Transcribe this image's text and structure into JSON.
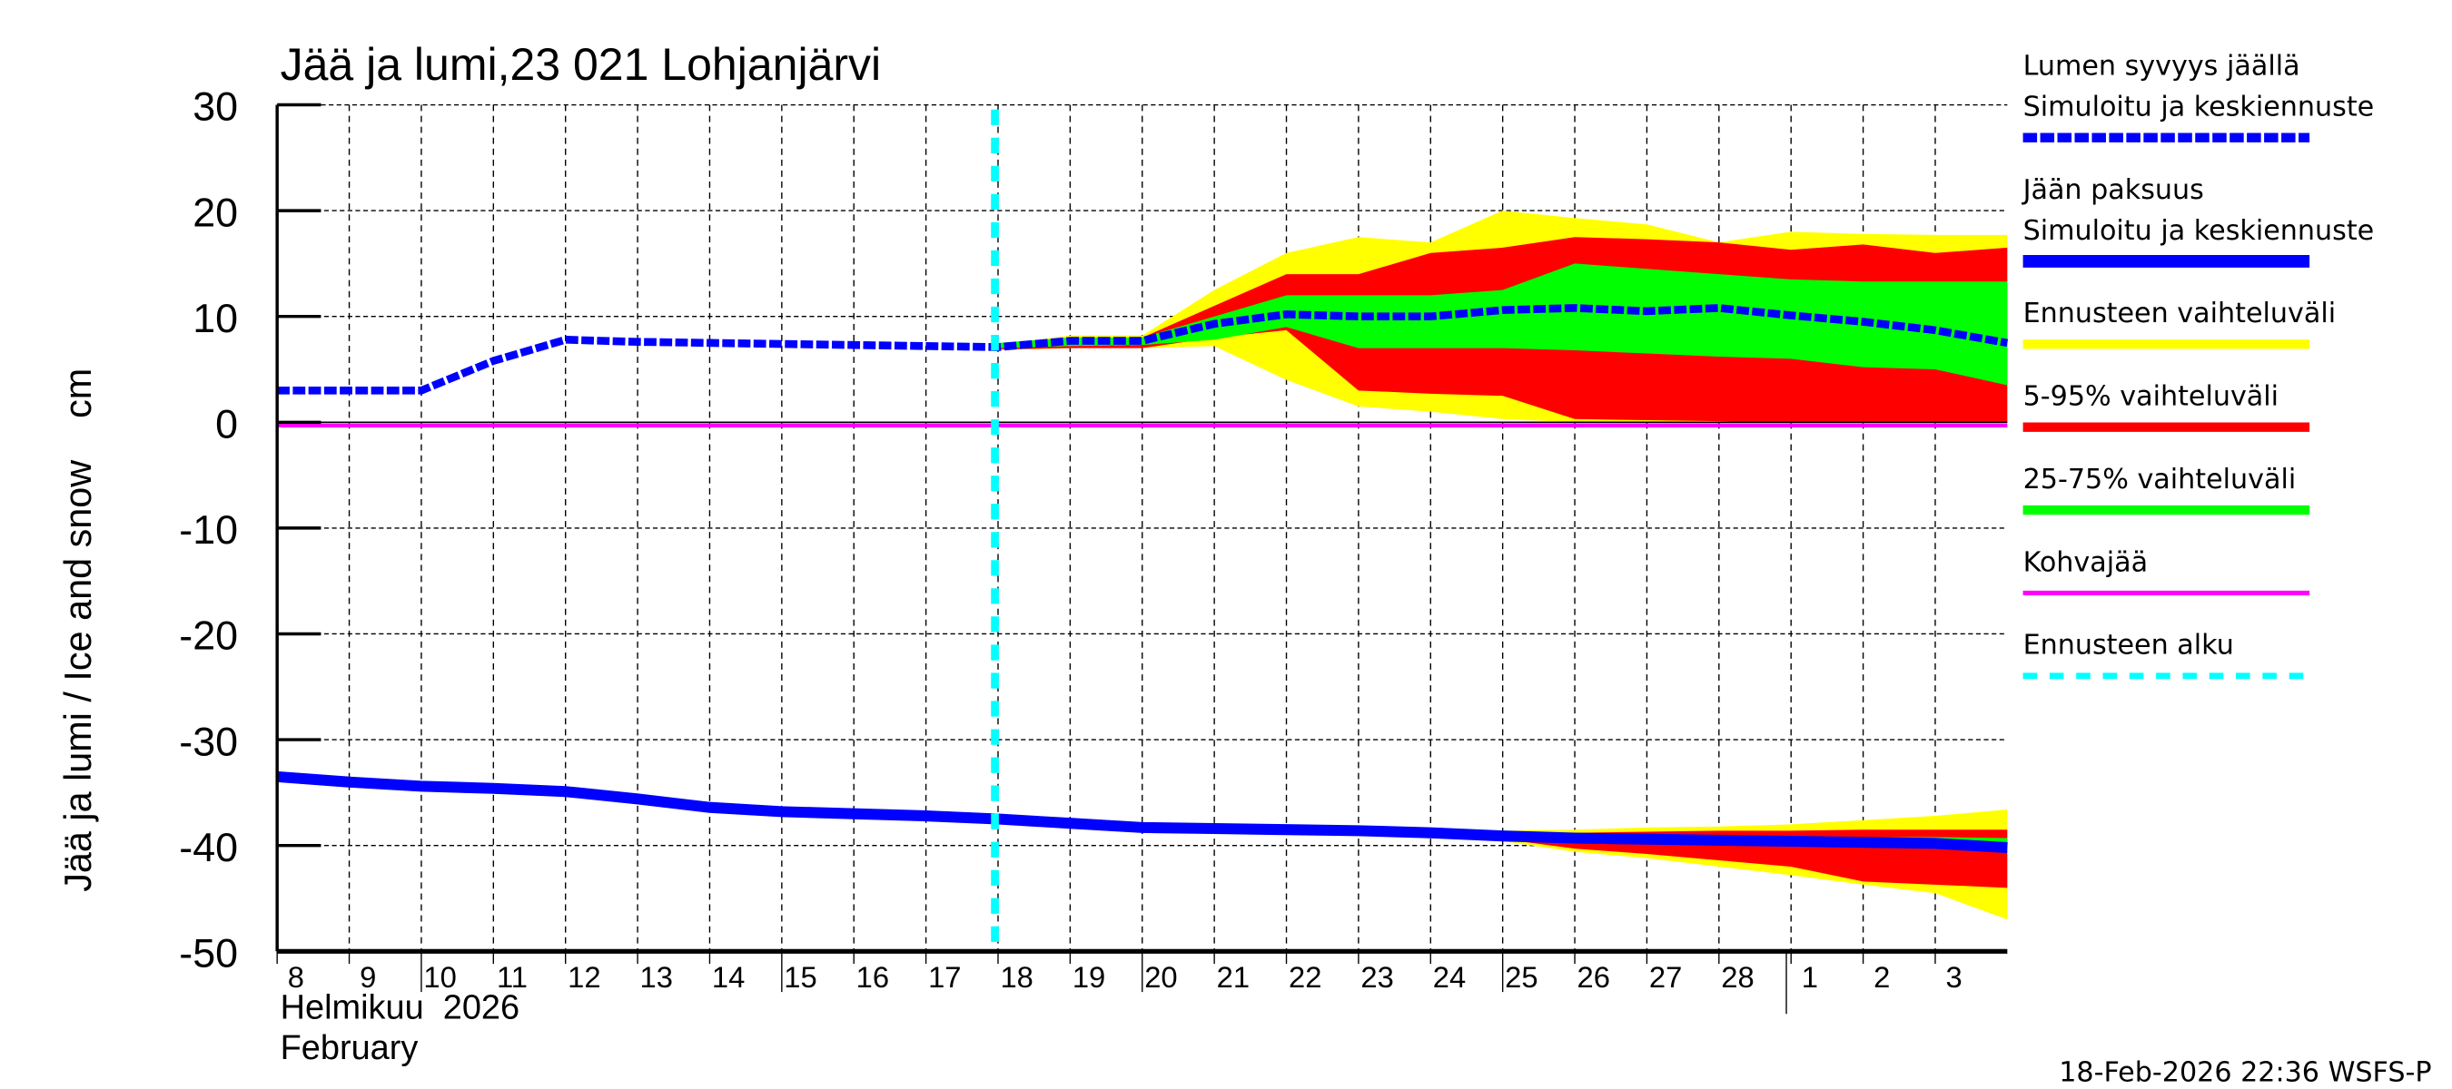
{
  "chart_data": {
    "type": "area",
    "title": "Jää ja lumi,23 021 Lohjanjärvi",
    "ylabel": "Jää ja lumi / Ice and snow    cm",
    "ylim": [
      -50,
      30
    ],
    "yticks": [
      30,
      20,
      10,
      0,
      -10,
      -20,
      -30,
      -40,
      -50
    ],
    "xlim": [
      "2026-02-08",
      "2026-03-04"
    ],
    "xtick_labels": [
      "8",
      "9",
      "10",
      "11",
      "12",
      "13",
      "14",
      "15",
      "16",
      "17",
      "18",
      "19",
      "20",
      "21",
      "22",
      "23",
      "24",
      "25",
      "26",
      "27",
      "28",
      "1",
      "2",
      "3"
    ],
    "month_label_fi": "Helmikuu  2026",
    "month_label_en": "February",
    "grid": true,
    "legend_placement": "right",
    "forecast_start": "2026-02-18",
    "kohvajaa_value": -0.3,
    "dates": [
      "2026-02-08",
      "2026-02-09",
      "2026-02-10",
      "2026-02-11",
      "2026-02-12",
      "2026-02-13",
      "2026-02-14",
      "2026-02-15",
      "2026-02-16",
      "2026-02-17",
      "2026-02-18",
      "2026-02-19",
      "2026-02-20",
      "2026-02-21",
      "2026-02-22",
      "2026-02-23",
      "2026-02-24",
      "2026-02-25",
      "2026-02-26",
      "2026-02-27",
      "2026-02-28",
      "2026-03-01",
      "2026-03-02",
      "2026-03-03",
      "2026-03-04"
    ],
    "snow_depth": [
      3,
      3,
      3,
      5.8,
      7.8,
      7.6,
      7.5,
      7.4,
      7.3,
      7.2,
      7.1,
      7.7,
      7.7,
      9.3,
      10.2,
      10,
      10,
      10.6,
      10.8,
      10.5,
      10.8,
      10.1,
      9.5,
      8.7,
      7.5
    ],
    "ice_thickness": [
      -33.5,
      -34,
      -34.4,
      -34.6,
      -34.9,
      -35.6,
      -36.4,
      -36.8,
      -37,
      -37.2,
      -37.5,
      -37.9,
      -38.3,
      -38.4,
      -38.5,
      -38.6,
      -38.8,
      -39.1,
      -39.3,
      -39.4,
      -39.5,
      -39.6,
      -39.7,
      -39.8,
      -40.2
    ],
    "band_dates": [
      "2026-02-18",
      "2026-02-19",
      "2026-02-20",
      "2026-02-21",
      "2026-02-22",
      "2026-02-23",
      "2026-02-24",
      "2026-02-25",
      "2026-02-26",
      "2026-02-27",
      "2026-02-28",
      "2026-03-01",
      "2026-03-02",
      "2026-03-03",
      "2026-03-04"
    ],
    "snow_bands": {
      "range": {
        "hi": [
          7.3,
          8.2,
          8.2,
          12.5,
          16,
          17.5,
          17,
          20,
          19.3,
          18.7,
          17,
          18,
          17.8,
          17.7,
          17.7
        ],
        "lo": [
          6.8,
          7,
          7,
          7.2,
          4,
          1.5,
          1,
          0.3,
          0,
          0,
          0,
          0,
          0,
          0,
          0
        ]
      },
      "p5_95": {
        "hi": [
          7.3,
          8,
          8,
          11,
          14,
          14,
          16,
          16.5,
          17.5,
          17.3,
          17,
          16.3,
          16.8,
          16,
          16.5
        ],
        "lo": [
          6.9,
          7,
          7,
          8,
          8.7,
          3,
          2.7,
          2.5,
          0.3,
          0.2,
          0.1,
          0,
          0,
          0,
          0
        ]
      },
      "p25_75": {
        "hi": [
          7.5,
          8,
          8,
          10,
          12,
          12,
          12,
          12.5,
          15,
          14.5,
          14,
          13.5,
          13.3,
          13.3,
          13.3
        ],
        "lo": [
          7,
          7.2,
          7.3,
          7.8,
          9,
          7,
          7,
          7,
          6.8,
          6.5,
          6.2,
          6,
          5.2,
          5,
          3.5
        ]
      }
    },
    "ice_bands": {
      "range": {
        "hi": [
          -37.5,
          -37.9,
          -38.3,
          -38.4,
          -38.5,
          -38.5,
          -38.4,
          -38.6,
          -38.5,
          -38.3,
          -38.2,
          -38,
          -37.6,
          -37.2,
          -36.6
        ],
        "lo": [
          -37.5,
          -37.9,
          -38.3,
          -38.4,
          -38.5,
          -38.7,
          -39,
          -39.6,
          -40.6,
          -41.2,
          -42,
          -42.8,
          -43.7,
          -44.5,
          -47
        ]
      },
      "p5_95": {
        "hi": [
          -37.5,
          -37.9,
          -38.3,
          -38.4,
          -38.5,
          -38.6,
          -38.8,
          -39,
          -38.8,
          -38.7,
          -38.6,
          -38.6,
          -38.5,
          -38.5,
          -38.5
        ],
        "lo": [
          -37.5,
          -37.9,
          -38.3,
          -38.4,
          -38.5,
          -38.7,
          -38.9,
          -39.4,
          -40.3,
          -40.8,
          -41.4,
          -42,
          -43.4,
          -43.7,
          -44
        ]
      },
      "p25_75": {
        "hi": [
          -37.5,
          -37.9,
          -38.3,
          -38.4,
          -38.5,
          -38.6,
          -38.8,
          -39.1,
          -39.1,
          -39.1,
          -39.1,
          -39.2,
          -39.2,
          -39.2,
          -39.3
        ],
        "lo": [
          -37.5,
          -37.9,
          -38.3,
          -38.4,
          -38.5,
          -38.6,
          -38.8,
          -39.2,
          -39.5,
          -39.7,
          -39.8,
          -40,
          -40.2,
          -40.3,
          -40.6
        ]
      }
    },
    "legend": [
      {
        "label1": "Lumen syvyys jäällä",
        "label2": "Simuloitu ja keskiennuste",
        "color": "#0000ff",
        "style": "dashed"
      },
      {
        "label1": "Jään paksuus",
        "label2": "Simuloitu ja keskiennuste",
        "color": "#0000ff",
        "style": "solid"
      },
      {
        "label1": "Ennusteen vaihteluväli",
        "color": "#ffff00",
        "style": "solid"
      },
      {
        "label1": "5-95% vaihteluväli",
        "color": "#ff0000",
        "style": "solid"
      },
      {
        "label1": "25-75% vaihteluväli",
        "color": "#00ff00",
        "style": "solid"
      },
      {
        "label1": "Kohvajää",
        "color": "#ff00ff",
        "style": "thin"
      },
      {
        "label1": "Ennusteen alku",
        "color": "#00ffff",
        "style": "dashed"
      }
    ],
    "footer": "18-Feb-2026 22:36 WSFS-P"
  }
}
